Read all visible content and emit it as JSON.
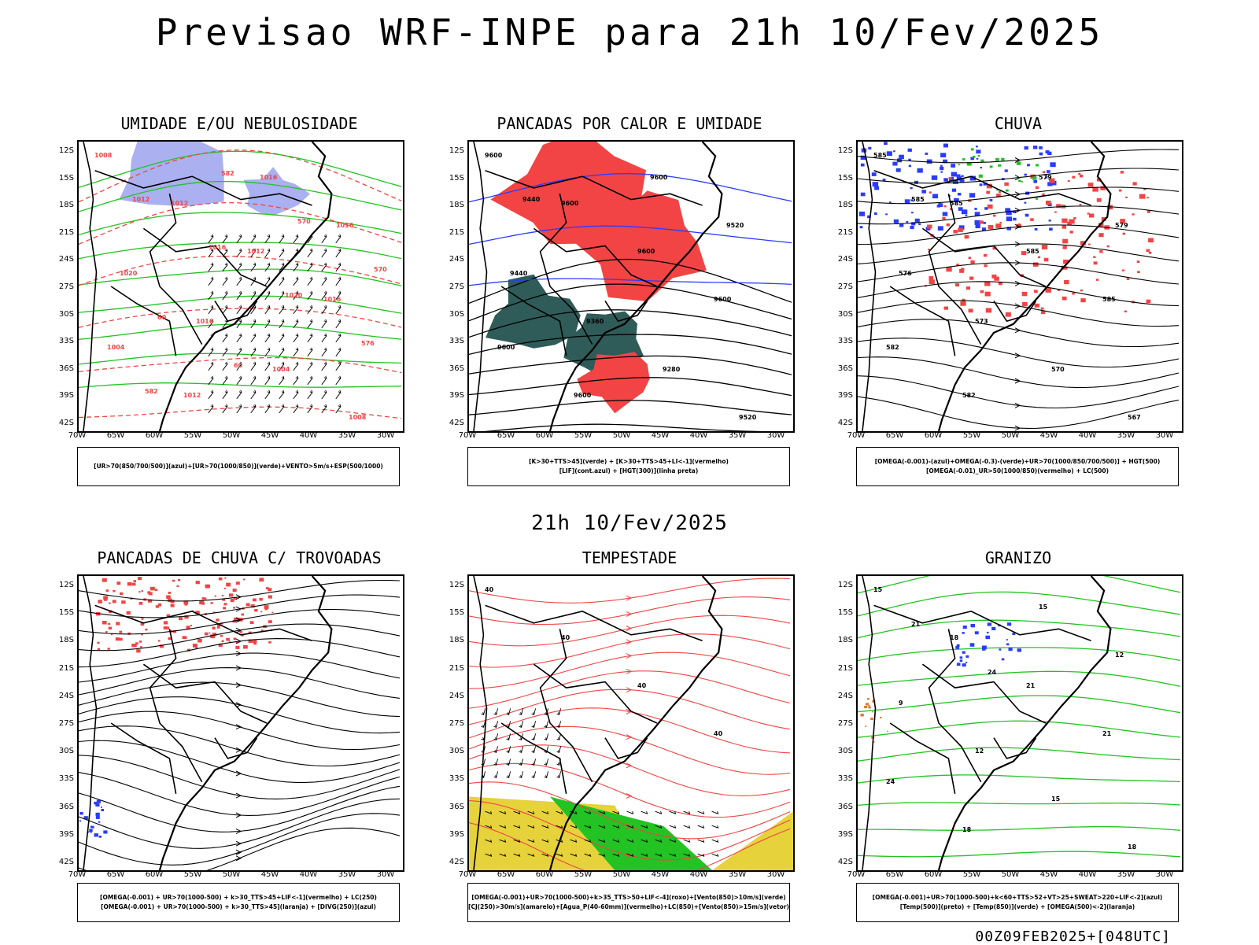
{
  "header": {
    "title": "Previsao WRF-INPE  para 21h 10/Fev/2025",
    "mid_date": "21h 10/Fev/2025",
    "footer": "00Z09FEB2025+[048UTC]"
  },
  "axes": {
    "lat_labels": [
      "12S",
      "15S",
      "18S",
      "21S",
      "24S",
      "27S",
      "30S",
      "33S",
      "36S",
      "39S",
      "42S"
    ],
    "lon_labels": [
      "70W",
      "65W",
      "60W",
      "55W",
      "50W",
      "45W",
      "40W",
      "35W",
      "30W"
    ]
  },
  "panels": [
    {
      "title": "UMIDADE E/OU NEBULOSIDADE",
      "legend": [
        "[UR>70(850/700/500)](azul)+[UR>70(1000/850)](verde)+VENTO>5m/s+ESP(500/1000)"
      ],
      "labels": [
        "1008",
        "1012",
        "1012",
        "1016",
        "1004",
        "1012",
        "1016",
        "1016",
        "1020",
        "1016",
        "1004",
        "1008",
        "1012",
        "1016",
        "1020",
        "576",
        "582",
        "582",
        "570",
        "570",
        "60",
        "60"
      ]
    },
    {
      "title": "PANCADAS POR CALOR E UMIDADE",
      "legend": [
        "[K>30+TTS>45](verde) + [K>30+TTS>45+LI<-1](vermelho)",
        "[LIF](cont.azul) + [HGT(300)](linha preta)"
      ],
      "labels": [
        "9600",
        "9600",
        "9600",
        "9600",
        "9600",
        "9600",
        "9600",
        "9520",
        "9440",
        "9360",
        "9280",
        "9520",
        "9440"
      ]
    },
    {
      "title": "CHUVA",
      "legend": [
        "[OMEGA(-0.001)-(azul)+OMEGA(-0.3)-(verde)+UR>70(1000/850/700/500)] + HGT(500)",
        "[OMEGA(-0.01)_UR>50(1000/850)(vermelho) + LC(500)"
      ],
      "labels": [
        "585",
        "585",
        "585",
        "585",
        "582",
        "582",
        "579",
        "579",
        "576",
        "573",
        "570",
        "567",
        "585"
      ]
    },
    {
      "title": "PANCADAS DE CHUVA C/ TROVOADAS",
      "legend": [
        "[OMEGA(-0.001) + UR>70(1000-500) + k>30_TTS>45+LIF<-1](vermelho) + LC(250)",
        "[OMEGA(-0.001) + UR>70(1000-500) + k>30_TTS>45](laranja) + [DIVG(250)](azul)"
      ],
      "labels": []
    },
    {
      "title": "TEMPESTADE",
      "legend": [
        "[OMEGA(-0.001)+UR>70(1000-500)+k>35_TTS>50+LIF<-4](roxo)+[Vento(850)>10m/s](verde)",
        "[CJ(250)>30m/s](amarelo)+[Agua_P(40-60mm)](vermelho)+LC(850)+[Vento(850)>15m/s](vetor)"
      ],
      "labels": [
        "40",
        "40",
        "40",
        "40"
      ]
    },
    {
      "title": "GRANIZO",
      "legend": [
        "[OMEGA(-0.001)+UR>70(1000-500)+k<60+TTS>52+VT>25+SWEAT>220+LIF<-2](azul)",
        "[Temp(500)](preto) + [Temp(850)](verde) + [OMEGA(500)<-2](laranja)"
      ],
      "labels": [
        "15",
        "18",
        "21",
        "21",
        "24",
        "18",
        "15",
        "12",
        "9",
        "12",
        "15",
        "18",
        "21",
        "24"
      ]
    }
  ],
  "colors": {
    "red": "#f24444",
    "green": "#22c322",
    "blue": "#2a3cff",
    "lavender": "#aab0f0",
    "teal": "#2f5c58",
    "yellow": "#e6d23a",
    "black": "#000000"
  }
}
